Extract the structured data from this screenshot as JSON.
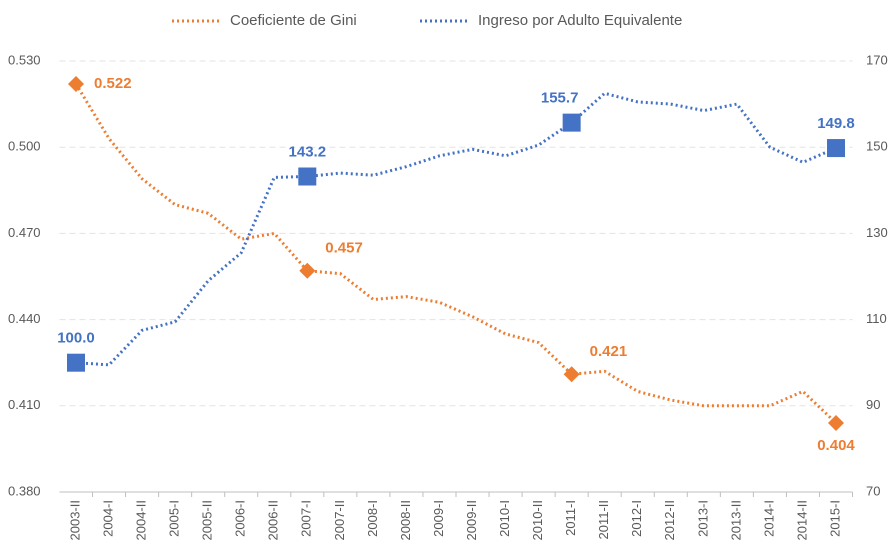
{
  "chart_data": {
    "type": "line",
    "categories": [
      "2003-II",
      "2004-I",
      "2004-II",
      "2005-I",
      "2005-II",
      "2006-I",
      "2006-II",
      "2007-I",
      "2007-II",
      "2008-I",
      "2008-II",
      "2009-I",
      "2009-II",
      "2010-I",
      "2010-II",
      "2011-I",
      "2011-II",
      "2012-I",
      "2012-II",
      "2013-I",
      "2013-II",
      "2014-I",
      "2014-II",
      "2015-I"
    ],
    "series": [
      {
        "name": "Coeficiente de Gini",
        "color": "#ed7d31",
        "axis": "y",
        "values": [
          0.522,
          0.503,
          0.489,
          0.48,
          0.477,
          0.468,
          0.47,
          0.457,
          0.456,
          0.447,
          0.448,
          0.446,
          0.441,
          0.435,
          0.432,
          0.421,
          0.422,
          0.415,
          0.412,
          0.41,
          0.41,
          0.41,
          0.415,
          0.404
        ],
        "value_labels": [
          "0.522",
          null,
          null,
          null,
          null,
          null,
          null,
          "0.457",
          null,
          null,
          null,
          null,
          null,
          null,
          null,
          "0.421",
          null,
          null,
          null,
          null,
          null,
          null,
          null,
          "0.404"
        ]
      },
      {
        "name": "Ingreso por Adulto Equivalente",
        "color": "#4472c4",
        "axis": "y2",
        "values": [
          100,
          99.5,
          107.5,
          109.5,
          119,
          125.5,
          143,
          143.2,
          144,
          143.5,
          145.5,
          148,
          149.5,
          148,
          150.5,
          155.7,
          162.5,
          160.5,
          160,
          158.5,
          160,
          150,
          146.5,
          149.8
        ],
        "value_labels": [
          "100.0",
          null,
          null,
          null,
          null,
          null,
          null,
          "143.2",
          null,
          null,
          null,
          null,
          null,
          null,
          null,
          "155.7",
          null,
          null,
          null,
          null,
          null,
          null,
          null,
          "149.8"
        ]
      }
    ],
    "ylim": [
      0.38,
      0.53
    ],
    "yticks": [
      {
        "value": 0.38,
        "label": "0.380"
      },
      {
        "value": 0.41,
        "label": "0.410"
      },
      {
        "value": 0.44,
        "label": "0.440"
      },
      {
        "value": 0.47,
        "label": "0.470"
      },
      {
        "value": 0.5,
        "label": "0.500"
      },
      {
        "value": 0.53,
        "label": "0.530"
      }
    ],
    "y2lim": [
      70,
      170
    ],
    "y2ticks": [
      70,
      90,
      110,
      130,
      150,
      170
    ],
    "grid": true,
    "legend": "top"
  }
}
